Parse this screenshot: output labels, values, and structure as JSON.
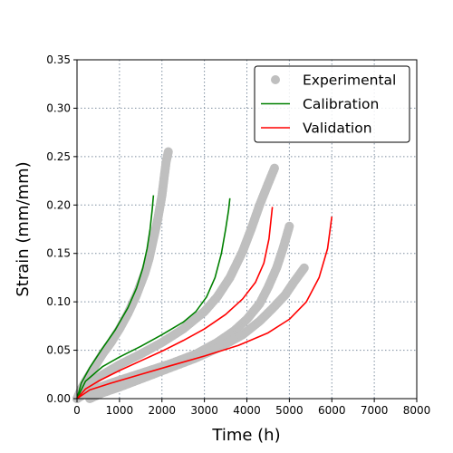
{
  "chart_data": {
    "type": "scatter+line",
    "title": "",
    "xlabel": "Time (h)",
    "ylabel": "Strain (mm/mm)",
    "xlim": [
      0,
      8000
    ],
    "ylim": [
      0,
      0.35
    ],
    "xticks": [
      0,
      1000,
      2000,
      3000,
      4000,
      5000,
      6000,
      7000,
      8000
    ],
    "yticks": [
      "0.00",
      "0.05",
      "0.10",
      "0.15",
      "0.20",
      "0.25",
      "0.30",
      "0.35"
    ],
    "grid": true,
    "legend_position": "top-right",
    "legend": [
      {
        "label": "Experimental",
        "kind": "marker",
        "color": "#bfbfbf"
      },
      {
        "label": "Calibration",
        "kind": "line",
        "color": "#008000"
      },
      {
        "label": "Validation",
        "kind": "line",
        "color": "#ff0000"
      }
    ],
    "experimental": [
      {
        "points": [
          [
            0,
            0
          ],
          [
            100,
            0.01
          ],
          [
            200,
            0.018
          ],
          [
            400,
            0.032
          ],
          [
            600,
            0.046
          ],
          [
            800,
            0.058
          ],
          [
            1000,
            0.072
          ],
          [
            1200,
            0.088
          ],
          [
            1400,
            0.107
          ],
          [
            1600,
            0.13
          ],
          [
            1700,
            0.145
          ],
          [
            1800,
            0.165
          ],
          [
            1900,
            0.185
          ],
          [
            2000,
            0.21
          ],
          [
            2050,
            0.228
          ],
          [
            2100,
            0.245
          ],
          [
            2150,
            0.255
          ]
        ]
      },
      {
        "points": [
          [
            0,
            0
          ],
          [
            200,
            0.012
          ],
          [
            500,
            0.022
          ],
          [
            1000,
            0.035
          ],
          [
            1500,
            0.046
          ],
          [
            2000,
            0.058
          ],
          [
            2500,
            0.072
          ],
          [
            3000,
            0.09
          ],
          [
            3300,
            0.105
          ],
          [
            3600,
            0.125
          ],
          [
            3900,
            0.152
          ],
          [
            4100,
            0.175
          ],
          [
            4300,
            0.2
          ],
          [
            4500,
            0.222
          ],
          [
            4650,
            0.238
          ]
        ]
      },
      {
        "points": [
          [
            0,
            0
          ],
          [
            300,
            0.008
          ],
          [
            800,
            0.016
          ],
          [
            1500,
            0.026
          ],
          [
            2200,
            0.036
          ],
          [
            2800,
            0.046
          ],
          [
            3300,
            0.058
          ],
          [
            3700,
            0.07
          ],
          [
            4000,
            0.082
          ],
          [
            4300,
            0.098
          ],
          [
            4500,
            0.115
          ],
          [
            4700,
            0.135
          ],
          [
            4850,
            0.155
          ],
          [
            5000,
            0.178
          ]
        ]
      },
      {
        "points": [
          [
            300,
            0
          ],
          [
            600,
            0.006
          ],
          [
            1000,
            0.012
          ],
          [
            1600,
            0.022
          ],
          [
            2200,
            0.032
          ],
          [
            2800,
            0.042
          ],
          [
            3400,
            0.054
          ],
          [
            3900,
            0.066
          ],
          [
            4300,
            0.08
          ],
          [
            4600,
            0.093
          ],
          [
            4900,
            0.107
          ],
          [
            5100,
            0.12
          ],
          [
            5350,
            0.135
          ]
        ]
      }
    ],
    "series": [
      {
        "name": "Calibration",
        "color": "#008000",
        "points": [
          [
            0,
            0
          ],
          [
            100,
            0.016
          ],
          [
            300,
            0.032
          ],
          [
            600,
            0.052
          ],
          [
            900,
            0.071
          ],
          [
            1200,
            0.094
          ],
          [
            1400,
            0.114
          ],
          [
            1550,
            0.135
          ],
          [
            1650,
            0.155
          ],
          [
            1720,
            0.175
          ],
          [
            1770,
            0.195
          ],
          [
            1800,
            0.21
          ]
        ]
      },
      {
        "name": "Calibration",
        "color": "#008000",
        "points": [
          [
            0,
            0
          ],
          [
            200,
            0.018
          ],
          [
            600,
            0.033
          ],
          [
            1000,
            0.043
          ],
          [
            1500,
            0.054
          ],
          [
            2000,
            0.066
          ],
          [
            2500,
            0.079
          ],
          [
            2800,
            0.09
          ],
          [
            3050,
            0.105
          ],
          [
            3250,
            0.125
          ],
          [
            3400,
            0.15
          ],
          [
            3500,
            0.175
          ],
          [
            3570,
            0.195
          ],
          [
            3600,
            0.207
          ]
        ]
      },
      {
        "name": "Validation",
        "color": "#ff0000",
        "points": [
          [
            0,
            0
          ],
          [
            200,
            0.01
          ],
          [
            500,
            0.018
          ],
          [
            1000,
            0.029
          ],
          [
            1500,
            0.039
          ],
          [
            2000,
            0.049
          ],
          [
            2500,
            0.06
          ],
          [
            3000,
            0.072
          ],
          [
            3500,
            0.087
          ],
          [
            3900,
            0.103
          ],
          [
            4200,
            0.12
          ],
          [
            4400,
            0.14
          ],
          [
            4520,
            0.165
          ],
          [
            4600,
            0.198
          ]
        ]
      },
      {
        "name": "Validation",
        "color": "#ff0000",
        "points": [
          [
            0,
            0
          ],
          [
            300,
            0.009
          ],
          [
            800,
            0.016
          ],
          [
            1500,
            0.025
          ],
          [
            2200,
            0.034
          ],
          [
            3000,
            0.044
          ],
          [
            3800,
            0.055
          ],
          [
            4500,
            0.068
          ],
          [
            5000,
            0.082
          ],
          [
            5400,
            0.1
          ],
          [
            5700,
            0.125
          ],
          [
            5900,
            0.155
          ],
          [
            6000,
            0.188
          ]
        ]
      }
    ]
  }
}
